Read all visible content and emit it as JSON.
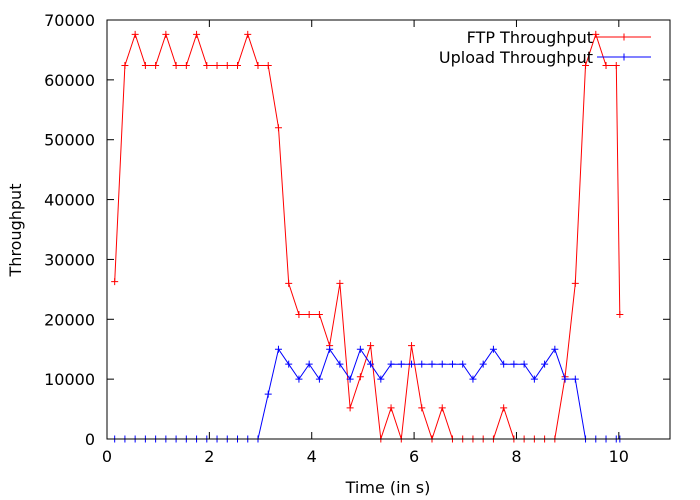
{
  "chart_data": {
    "type": "line",
    "title": "",
    "xlabel": "Time (in s)",
    "ylabel": "Throughput",
    "xlim": [
      0,
      11
    ],
    "ylim": [
      0,
      70000
    ],
    "x_ticks": [
      0,
      2,
      4,
      6,
      8,
      10
    ],
    "y_ticks": [
      0,
      10000,
      20000,
      30000,
      40000,
      50000,
      60000,
      70000
    ],
    "grid": false,
    "legend_position": "top-right",
    "series": [
      {
        "name": "FTP Throughput",
        "color": "#ff0000",
        "marker": "plus",
        "points": [
          [
            0.15,
            26300
          ],
          [
            0.35,
            62400
          ],
          [
            0.55,
            67600
          ],
          [
            0.75,
            62400
          ],
          [
            0.95,
            62400
          ],
          [
            1.15,
            67600
          ],
          [
            1.35,
            62400
          ],
          [
            1.55,
            62400
          ],
          [
            1.75,
            67600
          ],
          [
            1.95,
            62400
          ],
          [
            2.15,
            62400
          ],
          [
            2.35,
            62400
          ],
          [
            2.55,
            62400
          ],
          [
            2.75,
            67600
          ],
          [
            2.95,
            62400
          ],
          [
            3.15,
            62400
          ],
          [
            3.35,
            52000
          ],
          [
            3.55,
            26000
          ],
          [
            3.75,
            20800
          ],
          [
            3.95,
            20800
          ],
          [
            4.15,
            20800
          ],
          [
            4.35,
            15600
          ],
          [
            4.55,
            26000
          ],
          [
            4.75,
            5200
          ],
          [
            4.95,
            10400
          ],
          [
            5.15,
            15600
          ],
          [
            5.35,
            0
          ],
          [
            5.55,
            5200
          ],
          [
            5.75,
            0
          ],
          [
            5.95,
            15600
          ],
          [
            6.15,
            5200
          ],
          [
            6.35,
            0
          ],
          [
            6.55,
            5200
          ],
          [
            6.75,
            0
          ],
          [
            6.95,
            0
          ],
          [
            7.15,
            0
          ],
          [
            7.35,
            0
          ],
          [
            7.55,
            0
          ],
          [
            7.75,
            5200
          ],
          [
            7.95,
            0
          ],
          [
            8.15,
            0
          ],
          [
            8.35,
            0
          ],
          [
            8.55,
            0
          ],
          [
            8.75,
            0
          ],
          [
            8.95,
            10400
          ],
          [
            9.15,
            26000
          ],
          [
            9.35,
            62400
          ],
          [
            9.55,
            67600
          ],
          [
            9.75,
            62400
          ],
          [
            9.95,
            62400
          ],
          [
            10.02,
            20800
          ]
        ]
      },
      {
        "name": "Upload Throughput",
        "color": "#0000ff",
        "marker": "plus",
        "points": [
          [
            0.15,
            0
          ],
          [
            0.35,
            0
          ],
          [
            0.55,
            0
          ],
          [
            0.75,
            0
          ],
          [
            0.95,
            0
          ],
          [
            1.15,
            0
          ],
          [
            1.35,
            0
          ],
          [
            1.55,
            0
          ],
          [
            1.75,
            0
          ],
          [
            1.95,
            0
          ],
          [
            2.15,
            0
          ],
          [
            2.35,
            0
          ],
          [
            2.55,
            0
          ],
          [
            2.75,
            0
          ],
          [
            2.95,
            0
          ],
          [
            3.15,
            7500
          ],
          [
            3.35,
            15000
          ],
          [
            3.55,
            12500
          ],
          [
            3.75,
            10000
          ],
          [
            3.95,
            12500
          ],
          [
            4.15,
            10000
          ],
          [
            4.35,
            15000
          ],
          [
            4.55,
            12500
          ],
          [
            4.75,
            10000
          ],
          [
            4.95,
            15000
          ],
          [
            5.15,
            12500
          ],
          [
            5.35,
            10000
          ],
          [
            5.55,
            12500
          ],
          [
            5.75,
            12500
          ],
          [
            5.95,
            12500
          ],
          [
            6.15,
            12500
          ],
          [
            6.35,
            12500
          ],
          [
            6.55,
            12500
          ],
          [
            6.75,
            12500
          ],
          [
            6.95,
            12500
          ],
          [
            7.15,
            10000
          ],
          [
            7.35,
            12500
          ],
          [
            7.55,
            15000
          ],
          [
            7.75,
            12500
          ],
          [
            7.95,
            12500
          ],
          [
            8.15,
            12500
          ],
          [
            8.35,
            10000
          ],
          [
            8.55,
            12500
          ],
          [
            8.75,
            15000
          ],
          [
            8.95,
            10000
          ],
          [
            9.15,
            10000
          ],
          [
            9.35,
            0
          ],
          [
            9.55,
            0
          ],
          [
            9.75,
            0
          ],
          [
            9.95,
            0
          ],
          [
            10.02,
            0
          ]
        ]
      }
    ]
  }
}
